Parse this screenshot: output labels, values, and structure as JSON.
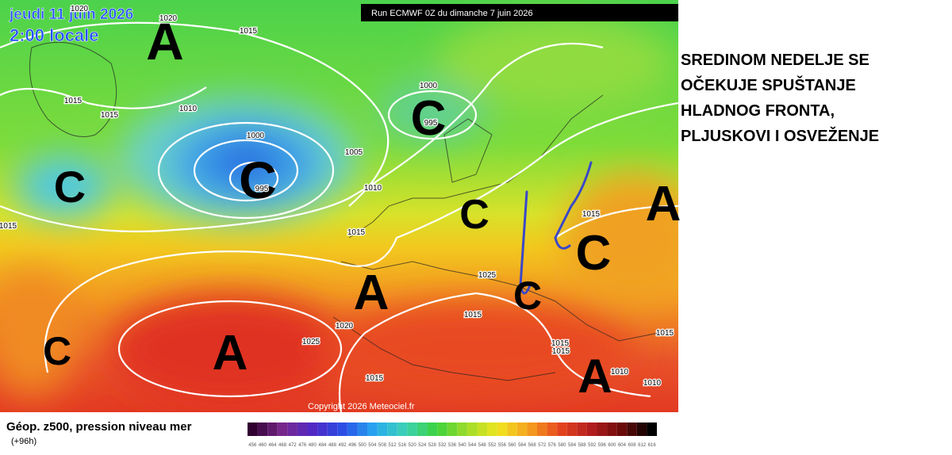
{
  "header": {
    "date": "jeudi 11 juin 2026",
    "time": "2:00 locale",
    "run": "Run ECMWF 0Z du dimanche 7 juin 2026"
  },
  "map": {
    "pressure_centers": [
      "A",
      "C",
      "C",
      "C",
      "C",
      "A",
      "C",
      "A",
      "C",
      "A",
      "C",
      "A"
    ],
    "isobar_labels": [
      1020,
      1020,
      1015,
      1015,
      1015,
      1010,
      1000,
      995,
      1005,
      1000,
      995,
      1010,
      1015,
      1015,
      1025,
      1015,
      1020,
      1025,
      1015,
      1015,
      1015,
      1010,
      1010,
      1015,
      1015
    ],
    "copyright": "Copyright 2026 Meteociel.fr"
  },
  "annotation": {
    "lines": [
      "SREDINOM NEDELJE SE",
      "OČEKUJE SPUŠTANJE",
      "HLADNOG FRONTA,",
      "PLJUSKOVI I OSVEŽENJE"
    ]
  },
  "legend": {
    "title": "Géop. z500, pression niveau mer",
    "lead_time": "(+96h)",
    "scale": [
      456,
      460,
      464,
      468,
      472,
      476,
      480,
      484,
      488,
      492,
      496,
      500,
      504,
      508,
      512,
      516,
      520,
      524,
      528,
      532,
      536,
      540,
      544,
      548,
      552,
      556,
      560,
      564,
      568,
      572,
      576,
      580,
      584,
      588,
      592,
      596,
      600,
      604,
      608,
      612,
      616
    ]
  }
}
